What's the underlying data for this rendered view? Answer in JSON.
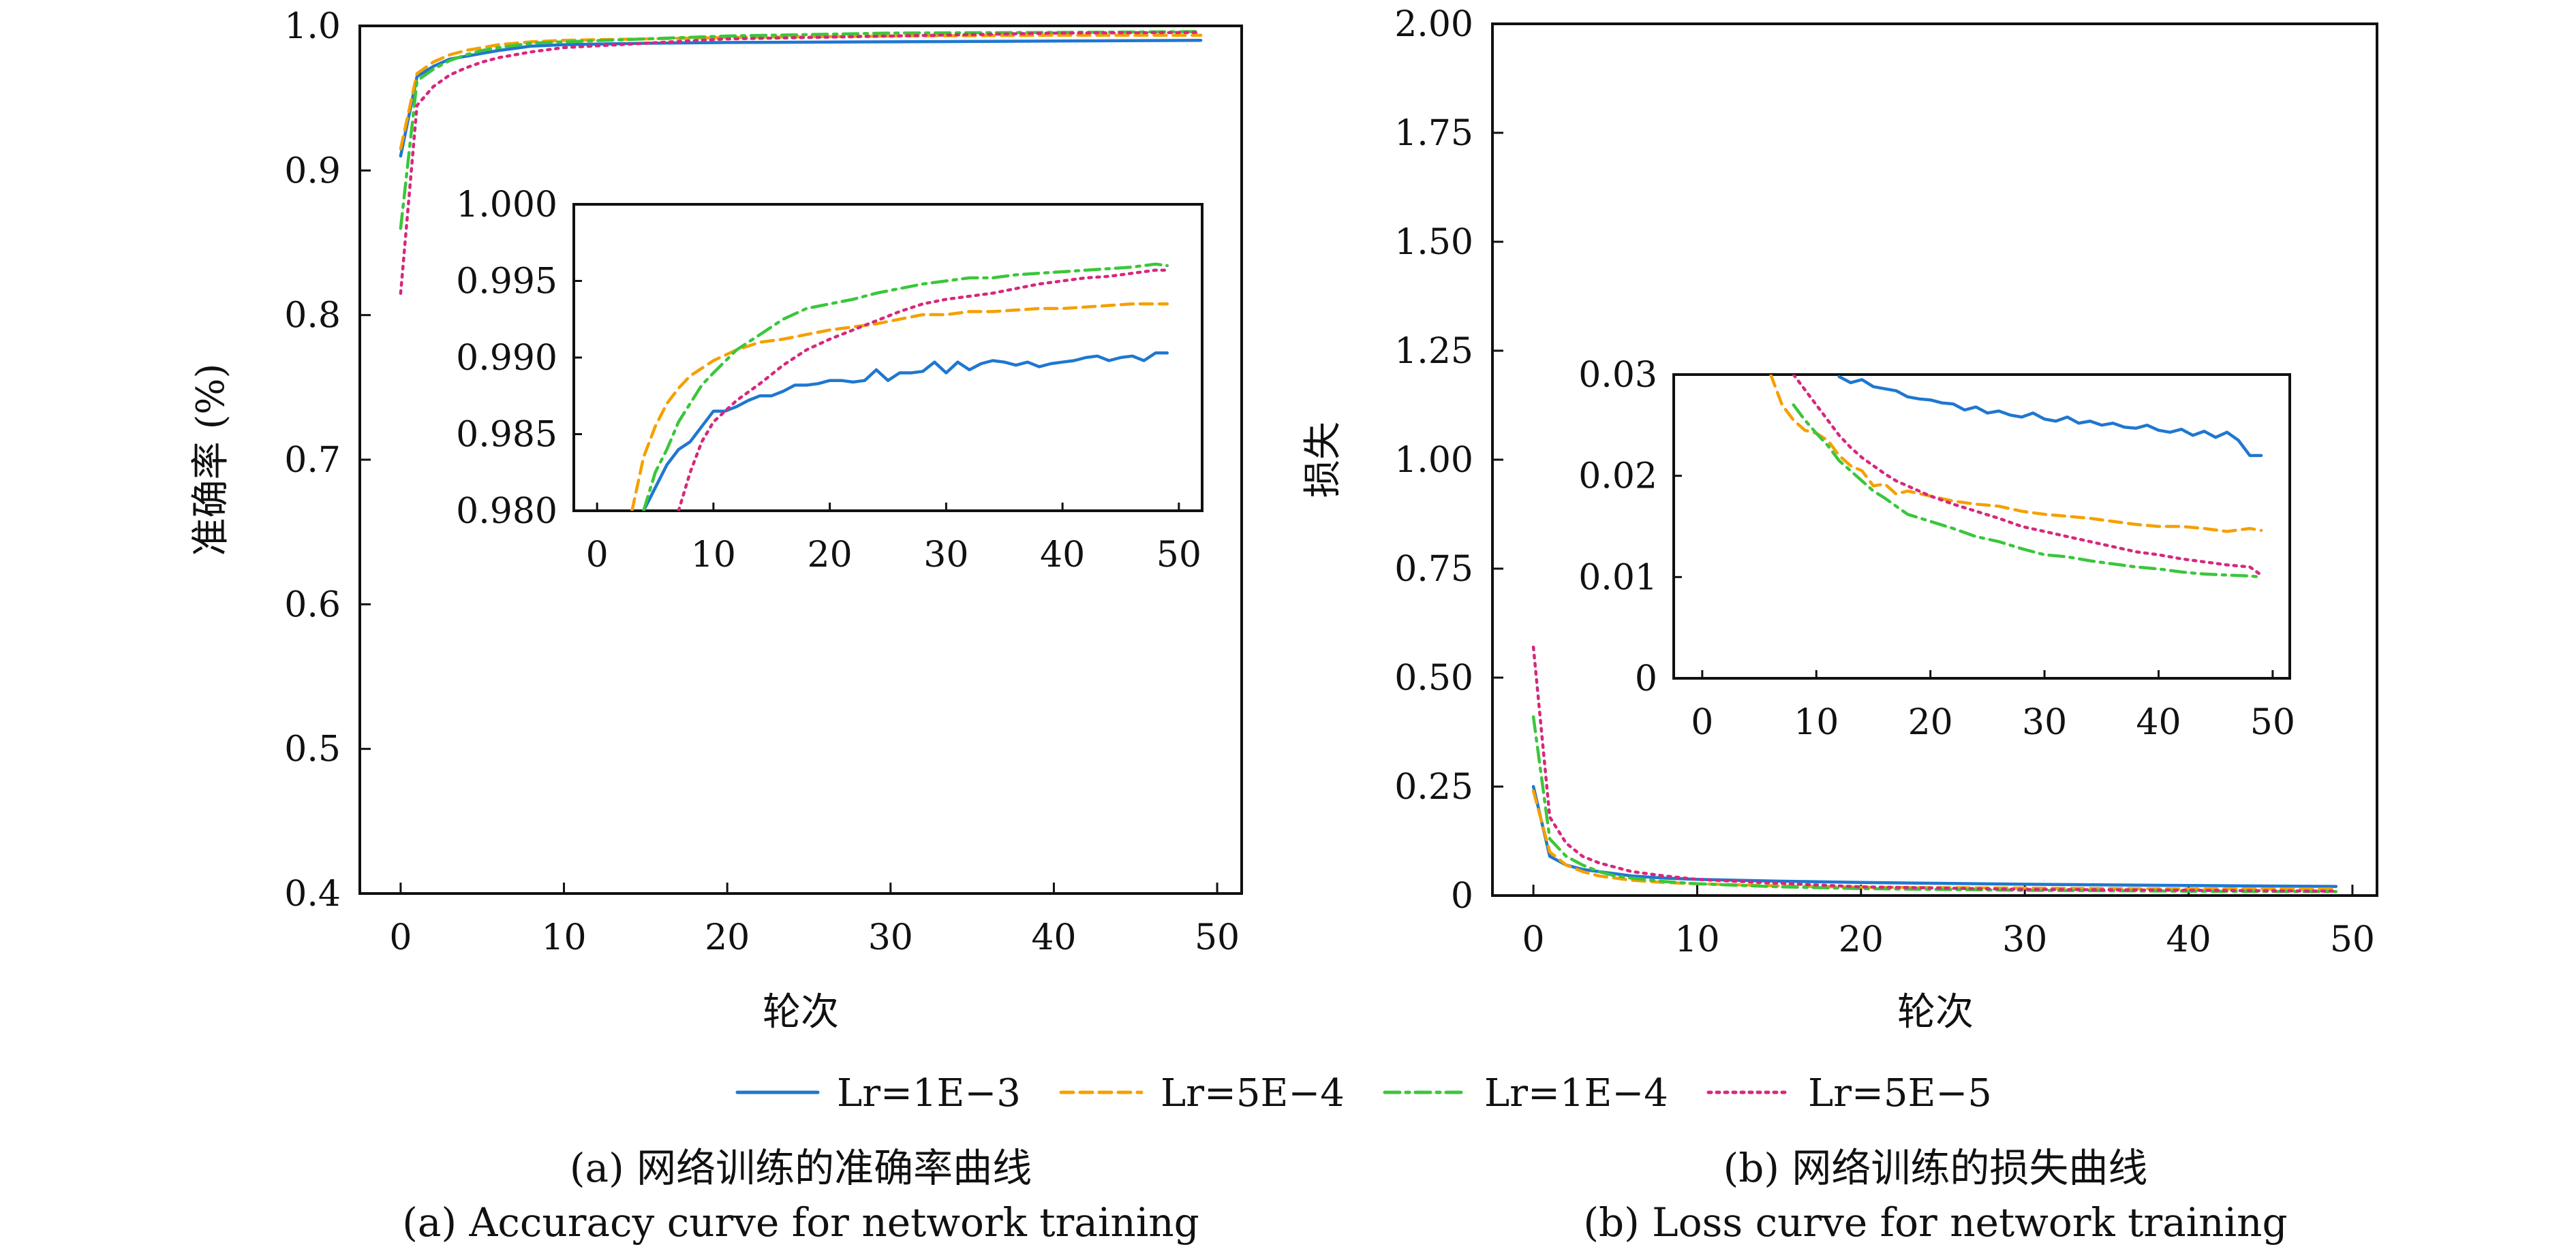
{
  "legend": [
    {
      "label": "Lr=1E−3",
      "color": "#1f77d0",
      "dash": "solid"
    },
    {
      "label": "Lr=5E−4",
      "color": "#f5a000",
      "dash": "dashed"
    },
    {
      "label": "Lr=1E−4",
      "color": "#3bc63b",
      "dash": "dashdot"
    },
    {
      "label": "Lr=5E−5",
      "color": "#d6287c",
      "dash": "dotted"
    }
  ],
  "captions": {
    "a_cn": "(a) 网络训练的准确率曲线",
    "a_en": "(a) Accuracy curve for network training",
    "b_cn": "(b) 网络训练的损失曲线",
    "b_en": "(b) Loss curve for network training"
  },
  "chart_data": [
    {
      "id": "a-main",
      "type": "line",
      "xlabel": "轮次",
      "ylabel": "准确率 (%)",
      "xlim": [
        -2.5,
        51.5
      ],
      "ylim": [
        0.4,
        1.0
      ],
      "xticks": [
        "0",
        "10",
        "20",
        "30",
        "40",
        "50"
      ],
      "yticks": [
        "0.4",
        "0.5",
        "0.6",
        "0.7",
        "0.8",
        "0.9",
        "1.0"
      ],
      "series": [
        {
          "name": "Lr=1E−3",
          "x": [
            0,
            1,
            2,
            3,
            4,
            5,
            6,
            8,
            10,
            15,
            20,
            30,
            40,
            49
          ],
          "values": [
            0.91,
            0.965,
            0.972,
            0.977,
            0.979,
            0.981,
            0.983,
            0.986,
            0.987,
            0.988,
            0.9885,
            0.989,
            0.9895,
            0.99
          ]
        },
        {
          "name": "Lr=5E−4",
          "x": [
            0,
            1,
            2,
            3,
            4,
            5,
            6,
            8,
            10,
            15,
            20,
            30,
            40,
            49
          ],
          "values": [
            0.915,
            0.967,
            0.975,
            0.98,
            0.983,
            0.985,
            0.987,
            0.989,
            0.99,
            0.991,
            0.992,
            0.993,
            0.9935,
            0.9935
          ]
        },
        {
          "name": "Lr=1E−4",
          "x": [
            0,
            1,
            2,
            3,
            4,
            5,
            6,
            8,
            10,
            15,
            20,
            30,
            40,
            49
          ],
          "values": [
            0.86,
            0.962,
            0.97,
            0.976,
            0.98,
            0.983,
            0.985,
            0.988,
            0.989,
            0.991,
            0.993,
            0.995,
            0.9955,
            0.996
          ]
        },
        {
          "name": "Lr=5E−5",
          "x": [
            0,
            1,
            2,
            3,
            4,
            5,
            6,
            8,
            10,
            15,
            20,
            30,
            40,
            49
          ],
          "values": [
            0.815,
            0.945,
            0.958,
            0.966,
            0.971,
            0.975,
            0.978,
            0.982,
            0.985,
            0.988,
            0.991,
            0.993,
            0.995,
            0.9955
          ]
        }
      ]
    },
    {
      "id": "a-inset",
      "type": "line",
      "xlim": [
        -2,
        52
      ],
      "ylim": [
        0.98,
        1.0
      ],
      "xticks": [
        "0",
        "10",
        "20",
        "30",
        "40",
        "50"
      ],
      "yticks": [
        "0.980",
        "0.985",
        "0.990",
        "0.995",
        "1.000"
      ],
      "series": [
        {
          "name": "Lr=1E−3",
          "x": [
            4,
            5,
            6,
            7,
            8,
            9,
            10,
            11,
            12,
            13,
            14,
            15,
            16,
            17,
            18,
            19,
            20,
            21,
            22,
            23,
            24,
            25,
            26,
            27,
            28,
            29,
            30,
            31,
            32,
            33,
            34,
            35,
            36,
            37,
            38,
            39,
            40,
            41,
            42,
            43,
            44,
            45,
            46,
            47,
            48,
            49
          ],
          "values": [
            0.98,
            0.9815,
            0.983,
            0.984,
            0.9845,
            0.9855,
            0.9865,
            0.9865,
            0.9868,
            0.9872,
            0.9875,
            0.9875,
            0.9878,
            0.9882,
            0.9882,
            0.9883,
            0.9885,
            0.9885,
            0.9884,
            0.9885,
            0.9892,
            0.9885,
            0.989,
            0.989,
            0.9891,
            0.9897,
            0.989,
            0.9897,
            0.9892,
            0.9896,
            0.9898,
            0.9897,
            0.9895,
            0.9897,
            0.9894,
            0.9896,
            0.9897,
            0.9898,
            0.99,
            0.9901,
            0.9898,
            0.99,
            0.9901,
            0.9898,
            0.9903,
            0.9903
          ]
        },
        {
          "name": "Lr=5E−4",
          "x": [
            3,
            4,
            5,
            6,
            7,
            8,
            9,
            10,
            12,
            14,
            16,
            18,
            20,
            22,
            24,
            26,
            28,
            30,
            32,
            34,
            36,
            38,
            40,
            42,
            44,
            46,
            48,
            49
          ],
          "values": [
            0.98,
            0.9835,
            0.9855,
            0.987,
            0.988,
            0.9888,
            0.9893,
            0.9898,
            0.9905,
            0.991,
            0.9912,
            0.9915,
            0.9918,
            0.992,
            0.9922,
            0.9925,
            0.9928,
            0.9928,
            0.993,
            0.993,
            0.9931,
            0.9932,
            0.9932,
            0.9933,
            0.9934,
            0.9935,
            0.9935,
            0.9935
          ]
        },
        {
          "name": "Lr=1E−4",
          "x": [
            4,
            5,
            6,
            7,
            8,
            9,
            10,
            12,
            14,
            16,
            18,
            20,
            22,
            24,
            26,
            28,
            30,
            32,
            34,
            36,
            38,
            40,
            42,
            44,
            46,
            48,
            49
          ],
          "values": [
            0.98,
            0.9825,
            0.984,
            0.9858,
            0.987,
            0.9882,
            0.989,
            0.9905,
            0.9915,
            0.9925,
            0.9932,
            0.9935,
            0.9938,
            0.9942,
            0.9945,
            0.9948,
            0.995,
            0.9952,
            0.9952,
            0.9954,
            0.9955,
            0.9956,
            0.9957,
            0.9958,
            0.9959,
            0.9961,
            0.996
          ]
        },
        {
          "name": "Lr=5E−5",
          "x": [
            7,
            8,
            9,
            10,
            12,
            14,
            16,
            18,
            20,
            22,
            24,
            26,
            28,
            30,
            32,
            34,
            36,
            38,
            40,
            42,
            44,
            46,
            48,
            49
          ],
          "values": [
            0.98,
            0.9825,
            0.9845,
            0.9858,
            0.9872,
            0.9883,
            0.9895,
            0.9905,
            0.9912,
            0.9918,
            0.9924,
            0.993,
            0.9935,
            0.9938,
            0.994,
            0.9942,
            0.9945,
            0.9948,
            0.995,
            0.9952,
            0.9953,
            0.9955,
            0.9957,
            0.9957
          ]
        }
      ]
    },
    {
      "id": "b-main",
      "type": "line",
      "xlabel": "轮次",
      "ylabel": "损失",
      "xlim": [
        -2.5,
        51.5
      ],
      "ylim": [
        0,
        2.0
      ],
      "xticks": [
        "0",
        "10",
        "20",
        "30",
        "40",
        "50"
      ],
      "yticks": [
        "0",
        "0.25",
        "0.50",
        "0.75",
        "1.00",
        "1.25",
        "1.50",
        "1.75",
        "2.00"
      ],
      "series": [
        {
          "name": "Lr=1E−3",
          "x": [
            0,
            1,
            2,
            3,
            4,
            5,
            6,
            8,
            10,
            15,
            20,
            30,
            40,
            49
          ],
          "values": [
            0.25,
            0.09,
            0.07,
            0.06,
            0.055,
            0.05,
            0.045,
            0.04,
            0.037,
            0.033,
            0.03,
            0.026,
            0.023,
            0.021
          ]
        },
        {
          "name": "Lr=5E−4",
          "x": [
            0,
            1,
            2,
            3,
            4,
            5,
            6,
            8,
            10,
            15,
            20,
            30,
            40,
            49
          ],
          "values": [
            0.24,
            0.1,
            0.07,
            0.055,
            0.045,
            0.04,
            0.035,
            0.03,
            0.027,
            0.022,
            0.019,
            0.017,
            0.015,
            0.015
          ]
        },
        {
          "name": "Lr=1E−4",
          "x": [
            0,
            1,
            2,
            3,
            4,
            5,
            6,
            8,
            10,
            15,
            20,
            30,
            40,
            49
          ],
          "values": [
            0.41,
            0.13,
            0.09,
            0.07,
            0.055,
            0.045,
            0.04,
            0.032,
            0.027,
            0.02,
            0.016,
            0.012,
            0.01,
            0.009
          ]
        },
        {
          "name": "Lr=5E−5",
          "x": [
            0,
            1,
            2,
            3,
            4,
            5,
            6,
            8,
            10,
            15,
            20,
            30,
            40,
            49
          ],
          "values": [
            0.57,
            0.18,
            0.12,
            0.09,
            0.075,
            0.065,
            0.055,
            0.045,
            0.037,
            0.028,
            0.02,
            0.014,
            0.012,
            0.01
          ]
        }
      ]
    },
    {
      "id": "b-inset",
      "type": "line",
      "xlim": [
        -2.5,
        51.5
      ],
      "ylim": [
        0,
        0.03
      ],
      "xticks": [
        "0",
        "10",
        "20",
        "30",
        "40",
        "50"
      ],
      "yticks": [
        "0",
        "0.01",
        "0.02",
        "0.03"
      ],
      "series": [
        {
          "name": "Lr=1E−3",
          "x": [
            12,
            13,
            14,
            15,
            16,
            17,
            18,
            19,
            20,
            21,
            22,
            23,
            24,
            25,
            26,
            27,
            28,
            29,
            30,
            31,
            32,
            33,
            34,
            35,
            36,
            37,
            38,
            39,
            40,
            41,
            42,
            43,
            44,
            45,
            46,
            47,
            48,
            49
          ],
          "values": [
            0.0298,
            0.0292,
            0.0295,
            0.0288,
            0.0286,
            0.0284,
            0.0278,
            0.0276,
            0.0275,
            0.0272,
            0.0271,
            0.0265,
            0.0268,
            0.0262,
            0.0264,
            0.026,
            0.0258,
            0.0262,
            0.0256,
            0.0254,
            0.0258,
            0.0252,
            0.0254,
            0.025,
            0.0252,
            0.0248,
            0.0247,
            0.025,
            0.0245,
            0.0243,
            0.0246,
            0.024,
            0.0244,
            0.0238,
            0.0243,
            0.0235,
            0.022,
            0.022
          ]
        },
        {
          "name": "Lr=5E−4",
          "x": [
            6,
            7,
            8,
            9,
            10,
            11,
            12,
            13,
            14,
            15,
            16,
            17,
            18,
            20,
            22,
            24,
            26,
            28,
            30,
            32,
            34,
            36,
            38,
            40,
            42,
            44,
            46,
            48,
            49
          ],
          "values": [
            0.03,
            0.027,
            0.0255,
            0.0245,
            0.0242,
            0.0235,
            0.022,
            0.021,
            0.0205,
            0.019,
            0.0192,
            0.0182,
            0.0185,
            0.018,
            0.0175,
            0.0172,
            0.017,
            0.0165,
            0.0162,
            0.016,
            0.0158,
            0.0155,
            0.0152,
            0.015,
            0.015,
            0.0148,
            0.0145,
            0.0148,
            0.0146
          ]
        },
        {
          "name": "Lr=1E−4",
          "x": [
            8,
            9,
            10,
            11,
            12,
            13,
            14,
            15,
            16,
            17,
            18,
            20,
            22,
            24,
            26,
            28,
            30,
            32,
            34,
            36,
            38,
            40,
            42,
            44,
            46,
            48,
            49
          ],
          "values": [
            0.027,
            0.0255,
            0.0242,
            0.023,
            0.0215,
            0.0205,
            0.0195,
            0.0185,
            0.0178,
            0.017,
            0.0162,
            0.0155,
            0.0148,
            0.014,
            0.0135,
            0.0128,
            0.0122,
            0.012,
            0.0116,
            0.0113,
            0.011,
            0.0108,
            0.0105,
            0.0103,
            0.0102,
            0.0101,
            0.01
          ]
        },
        {
          "name": "Lr=5E−5",
          "x": [
            8,
            9,
            10,
            11,
            12,
            13,
            14,
            15,
            16,
            17,
            18,
            20,
            22,
            24,
            26,
            28,
            30,
            32,
            34,
            36,
            38,
            40,
            42,
            44,
            46,
            48,
            49
          ],
          "values": [
            0.03,
            0.0285,
            0.027,
            0.0255,
            0.024,
            0.0228,
            0.0218,
            0.021,
            0.0202,
            0.0195,
            0.019,
            0.018,
            0.0172,
            0.0165,
            0.0158,
            0.015,
            0.0145,
            0.014,
            0.0135,
            0.013,
            0.0125,
            0.0122,
            0.0118,
            0.0115,
            0.0112,
            0.011,
            0.0102
          ]
        }
      ]
    }
  ]
}
